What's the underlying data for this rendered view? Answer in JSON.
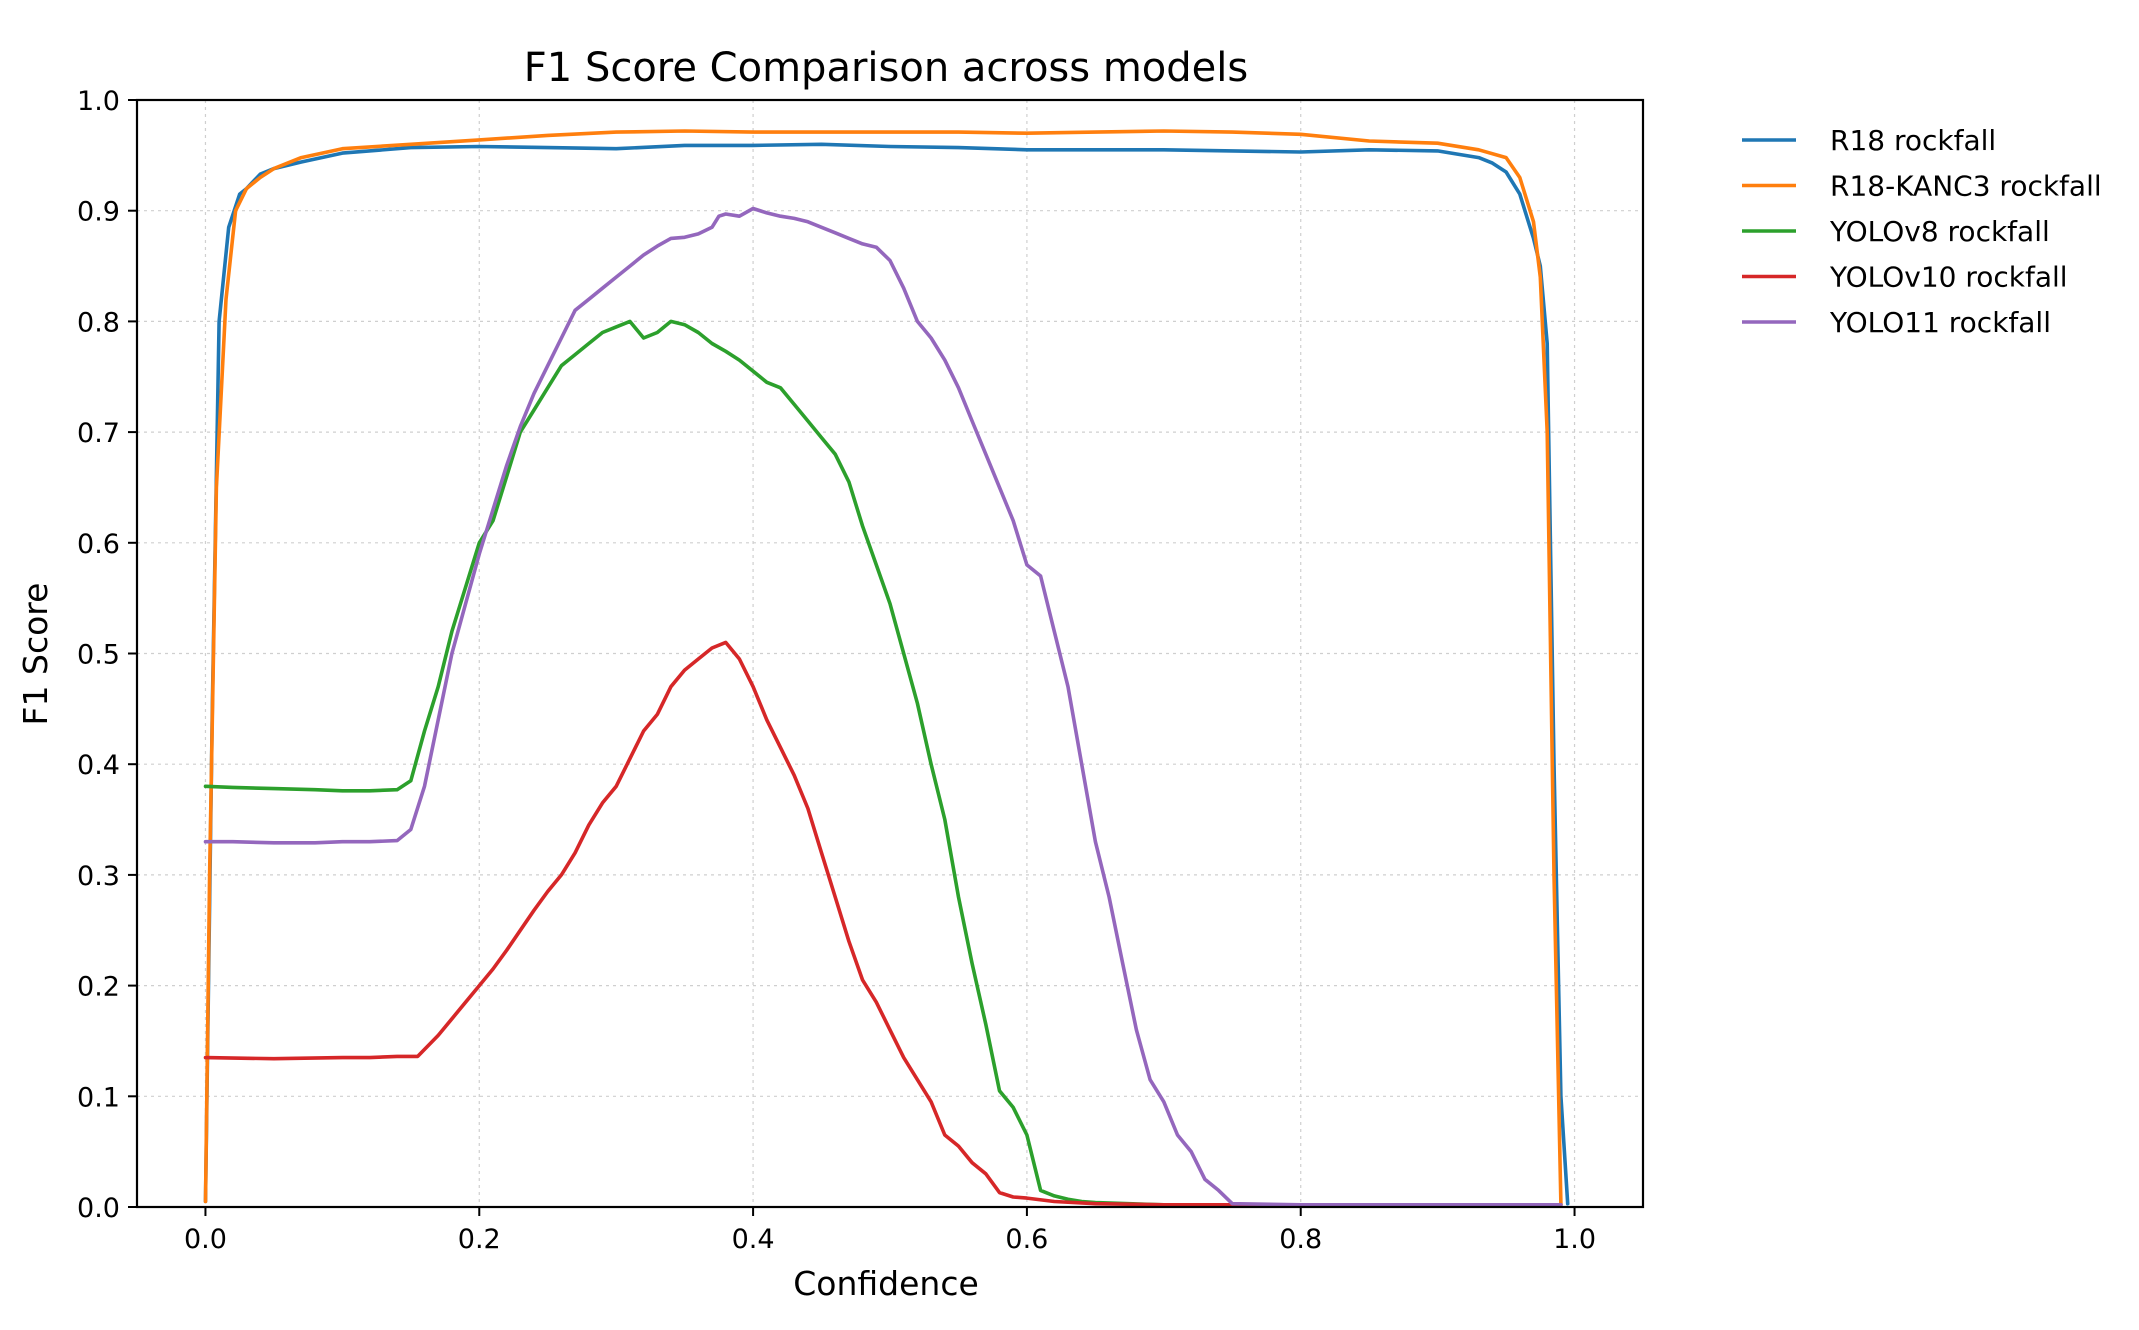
{
  "chart_data": {
    "type": "line",
    "title": "F1 Score Comparison across models",
    "xlabel": "Confidence",
    "ylabel": "F1 Score",
    "xlim": [
      -0.05,
      1.05
    ],
    "ylim": [
      0.0,
      1.0
    ],
    "xticks": [
      0.0,
      0.2,
      0.4,
      0.6,
      0.8,
      1.0
    ],
    "xtick_labels": [
      "0.0",
      "0.2",
      "0.4",
      "0.6",
      "0.8",
      "1.0"
    ],
    "yticks": [
      0.0,
      0.1,
      0.2,
      0.3,
      0.4,
      0.5,
      0.6,
      0.7,
      0.8,
      0.9,
      1.0
    ],
    "ytick_labels": [
      "0.0",
      "0.1",
      "0.2",
      "0.3",
      "0.4",
      "0.5",
      "0.6",
      "0.7",
      "0.8",
      "0.9",
      "1.0"
    ],
    "grid": true,
    "legend_position": "outside-top-right",
    "series": [
      {
        "name": "R18 rockfall",
        "color": "#1f77b4",
        "x": [
          0.0,
          0.005,
          0.01,
          0.017,
          0.025,
          0.03,
          0.04,
          0.05,
          0.07,
          0.1,
          0.15,
          0.2,
          0.25,
          0.3,
          0.35,
          0.4,
          0.45,
          0.5,
          0.55,
          0.6,
          0.65,
          0.7,
          0.75,
          0.8,
          0.85,
          0.9,
          0.93,
          0.94,
          0.95,
          0.96,
          0.97,
          0.975,
          0.98,
          0.985,
          0.99,
          0.995
        ],
        "y": [
          0.005,
          0.45,
          0.8,
          0.885,
          0.915,
          0.92,
          0.933,
          0.938,
          0.944,
          0.952,
          0.957,
          0.958,
          0.957,
          0.956,
          0.959,
          0.959,
          0.96,
          0.958,
          0.957,
          0.955,
          0.955,
          0.955,
          0.954,
          0.953,
          0.955,
          0.954,
          0.948,
          0.943,
          0.935,
          0.915,
          0.875,
          0.85,
          0.78,
          0.4,
          0.1,
          0.003
        ]
      },
      {
        "name": "R18-KANC3 rockfall",
        "color": "#ff7f0e",
        "x": [
          0.0,
          0.003,
          0.008,
          0.015,
          0.022,
          0.03,
          0.04,
          0.05,
          0.07,
          0.1,
          0.15,
          0.2,
          0.25,
          0.3,
          0.35,
          0.4,
          0.45,
          0.5,
          0.55,
          0.6,
          0.65,
          0.7,
          0.75,
          0.8,
          0.85,
          0.9,
          0.93,
          0.95,
          0.96,
          0.97,
          0.975,
          0.98,
          0.985,
          0.99
        ],
        "y": [
          0.005,
          0.3,
          0.65,
          0.82,
          0.9,
          0.92,
          0.93,
          0.938,
          0.948,
          0.956,
          0.96,
          0.964,
          0.968,
          0.971,
          0.972,
          0.971,
          0.971,
          0.971,
          0.971,
          0.97,
          0.971,
          0.972,
          0.971,
          0.969,
          0.963,
          0.961,
          0.955,
          0.948,
          0.93,
          0.89,
          0.84,
          0.7,
          0.3,
          0.003
        ]
      },
      {
        "name": "YOLOv8 rockfall",
        "color": "#2ca02c",
        "x": [
          0.0,
          0.02,
          0.05,
          0.08,
          0.1,
          0.12,
          0.14,
          0.15,
          0.16,
          0.17,
          0.18,
          0.19,
          0.2,
          0.21,
          0.22,
          0.23,
          0.24,
          0.25,
          0.26,
          0.27,
          0.28,
          0.29,
          0.3,
          0.31,
          0.32,
          0.33,
          0.34,
          0.35,
          0.36,
          0.37,
          0.38,
          0.39,
          0.4,
          0.41,
          0.42,
          0.43,
          0.44,
          0.45,
          0.46,
          0.47,
          0.48,
          0.49,
          0.5,
          0.51,
          0.52,
          0.53,
          0.54,
          0.55,
          0.56,
          0.57,
          0.58,
          0.59,
          0.6,
          0.61,
          0.62,
          0.63,
          0.64,
          0.65,
          0.7,
          0.75,
          0.8,
          0.9,
          0.99
        ],
        "y": [
          0.38,
          0.379,
          0.378,
          0.377,
          0.376,
          0.376,
          0.377,
          0.385,
          0.43,
          0.47,
          0.52,
          0.56,
          0.6,
          0.62,
          0.66,
          0.7,
          0.72,
          0.74,
          0.76,
          0.77,
          0.78,
          0.79,
          0.795,
          0.8,
          0.785,
          0.79,
          0.8,
          0.797,
          0.79,
          0.78,
          0.773,
          0.765,
          0.755,
          0.745,
          0.74,
          0.725,
          0.71,
          0.695,
          0.68,
          0.655,
          0.615,
          0.58,
          0.545,
          0.5,
          0.455,
          0.4,
          0.35,
          0.28,
          0.22,
          0.165,
          0.105,
          0.09,
          0.065,
          0.015,
          0.01,
          0.007,
          0.005,
          0.004,
          0.002,
          0.002,
          0.002,
          0.002,
          0.002
        ]
      },
      {
        "name": "YOLOv10 rockfall",
        "color": "#d62728",
        "x": [
          0.0,
          0.05,
          0.1,
          0.12,
          0.14,
          0.155,
          0.17,
          0.18,
          0.19,
          0.2,
          0.21,
          0.22,
          0.23,
          0.24,
          0.25,
          0.26,
          0.27,
          0.28,
          0.29,
          0.3,
          0.31,
          0.32,
          0.33,
          0.34,
          0.35,
          0.36,
          0.37,
          0.38,
          0.39,
          0.4,
          0.41,
          0.42,
          0.43,
          0.44,
          0.45,
          0.46,
          0.47,
          0.48,
          0.49,
          0.5,
          0.51,
          0.52,
          0.53,
          0.54,
          0.55,
          0.56,
          0.57,
          0.58,
          0.59,
          0.6,
          0.62,
          0.65,
          0.7,
          0.8,
          0.9,
          0.99
        ],
        "y": [
          0.135,
          0.134,
          0.135,
          0.135,
          0.136,
          0.136,
          0.155,
          0.17,
          0.185,
          0.2,
          0.215,
          0.232,
          0.25,
          0.268,
          0.285,
          0.3,
          0.32,
          0.345,
          0.365,
          0.38,
          0.405,
          0.43,
          0.445,
          0.47,
          0.485,
          0.495,
          0.505,
          0.51,
          0.495,
          0.47,
          0.44,
          0.415,
          0.39,
          0.36,
          0.32,
          0.28,
          0.24,
          0.205,
          0.185,
          0.16,
          0.135,
          0.115,
          0.095,
          0.065,
          0.055,
          0.04,
          0.03,
          0.013,
          0.009,
          0.008,
          0.005,
          0.003,
          0.002,
          0.002,
          0.002,
          0.002
        ]
      },
      {
        "name": "YOLO11 rockfall",
        "color": "#9467bd",
        "x": [
          0.0,
          0.02,
          0.05,
          0.08,
          0.1,
          0.12,
          0.14,
          0.15,
          0.16,
          0.17,
          0.18,
          0.19,
          0.2,
          0.21,
          0.22,
          0.23,
          0.24,
          0.25,
          0.26,
          0.27,
          0.28,
          0.29,
          0.3,
          0.31,
          0.32,
          0.33,
          0.34,
          0.35,
          0.36,
          0.37,
          0.375,
          0.38,
          0.39,
          0.4,
          0.41,
          0.42,
          0.43,
          0.44,
          0.45,
          0.46,
          0.47,
          0.48,
          0.49,
          0.5,
          0.51,
          0.52,
          0.53,
          0.54,
          0.55,
          0.56,
          0.57,
          0.58,
          0.59,
          0.6,
          0.61,
          0.62,
          0.63,
          0.64,
          0.65,
          0.66,
          0.67,
          0.68,
          0.69,
          0.7,
          0.71,
          0.72,
          0.73,
          0.74,
          0.75,
          0.8,
          0.9,
          0.99
        ],
        "y": [
          0.33,
          0.33,
          0.329,
          0.329,
          0.33,
          0.33,
          0.331,
          0.341,
          0.38,
          0.44,
          0.5,
          0.545,
          0.59,
          0.63,
          0.67,
          0.705,
          0.735,
          0.76,
          0.785,
          0.81,
          0.82,
          0.83,
          0.84,
          0.85,
          0.86,
          0.868,
          0.875,
          0.876,
          0.879,
          0.885,
          0.895,
          0.897,
          0.895,
          0.902,
          0.898,
          0.895,
          0.893,
          0.89,
          0.885,
          0.88,
          0.875,
          0.87,
          0.867,
          0.855,
          0.83,
          0.8,
          0.785,
          0.765,
          0.74,
          0.71,
          0.68,
          0.65,
          0.62,
          0.58,
          0.57,
          0.52,
          0.47,
          0.4,
          0.33,
          0.28,
          0.22,
          0.16,
          0.115,
          0.095,
          0.065,
          0.05,
          0.025,
          0.015,
          0.003,
          0.002,
          0.002,
          0.002
        ]
      }
    ]
  }
}
